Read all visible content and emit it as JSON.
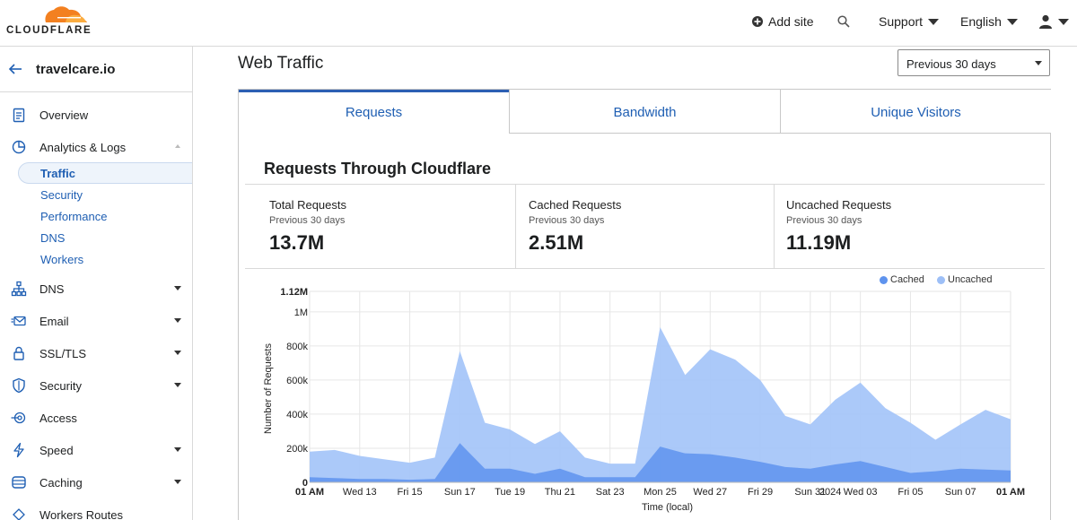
{
  "header": {
    "brand": "CLOUDFLARE",
    "add_site": "Add site",
    "support": "Support",
    "language": "English"
  },
  "sidebar": {
    "site": "travelcare.io",
    "items": [
      {
        "label": "Overview"
      },
      {
        "label": "Analytics & Logs"
      },
      {
        "label": "DNS"
      },
      {
        "label": "Email"
      },
      {
        "label": "SSL/TLS"
      },
      {
        "label": "Security"
      },
      {
        "label": "Access"
      },
      {
        "label": "Speed"
      },
      {
        "label": "Caching"
      },
      {
        "label": "Workers Routes"
      }
    ],
    "analytics_sub": [
      "Traffic",
      "Security",
      "Performance",
      "DNS",
      "Workers"
    ]
  },
  "main": {
    "title": "Web Traffic",
    "range": "Previous 30 days",
    "tabs": [
      "Requests",
      "Bandwidth",
      "Unique Visitors"
    ],
    "section_title": "Requests Through Cloudflare",
    "stats": [
      {
        "title": "Total Requests",
        "period": "Previous 30 days",
        "value": "13.7M"
      },
      {
        "title": "Cached Requests",
        "period": "Previous 30 days",
        "value": "2.51M"
      },
      {
        "title": "Uncached Requests",
        "period": "Previous 30 days",
        "value": "11.19M"
      }
    ]
  },
  "colors": {
    "accent": "#1f5fb3",
    "cached": "#6f9cf0",
    "uncached": "#9fc0f8",
    "logo_orange": "#f38020"
  },
  "chart_data": {
    "type": "area",
    "xlabel": "Time (local)",
    "ylabel": "Number of Requests",
    "ylim": [
      0,
      1120000
    ],
    "yticks": [
      "0",
      "200k",
      "400k",
      "600k",
      "800k",
      "1M",
      "1.12M"
    ],
    "ytick_values": [
      0,
      200000,
      400000,
      600000,
      800000,
      1000000,
      1120000
    ],
    "xticks": [
      "01 AM",
      "Wed 13",
      "Fri 15",
      "Sun 17",
      "Tue 19",
      "Thu 21",
      "Sat 23",
      "Mon 25",
      "Wed 27",
      "Fri 29",
      "Sun 31",
      "2024",
      "Wed 03",
      "Fri 05",
      "Sun 07",
      "01 AM"
    ],
    "xtick_pos": [
      0,
      2,
      4,
      6,
      8,
      10,
      12,
      14,
      16,
      18,
      20,
      20.8,
      22,
      24,
      26,
      28
    ],
    "legend": [
      "Cached",
      "Uncached"
    ],
    "x": [
      0,
      1,
      2,
      3,
      4,
      5,
      6,
      7,
      8,
      9,
      10,
      11,
      12,
      13,
      14,
      15,
      16,
      17,
      18,
      19,
      20,
      21,
      22,
      23,
      24,
      25,
      26,
      27,
      28
    ],
    "series": [
      {
        "name": "Cached",
        "values": [
          30000,
          25000,
          20000,
          20000,
          15000,
          20000,
          230000,
          80000,
          80000,
          50000,
          80000,
          30000,
          30000,
          30000,
          210000,
          170000,
          165000,
          145000,
          120000,
          90000,
          80000,
          105000,
          125000,
          90000,
          55000,
          65000,
          80000,
          75000,
          70000
        ]
      },
      {
        "name": "Uncached",
        "values": [
          180000,
          190000,
          155000,
          135000,
          115000,
          145000,
          770000,
          350000,
          310000,
          225000,
          300000,
          145000,
          110000,
          110000,
          910000,
          630000,
          780000,
          720000,
          600000,
          390000,
          340000,
          485000,
          585000,
          435000,
          350000,
          250000,
          340000,
          425000,
          370000
        ]
      }
    ]
  }
}
